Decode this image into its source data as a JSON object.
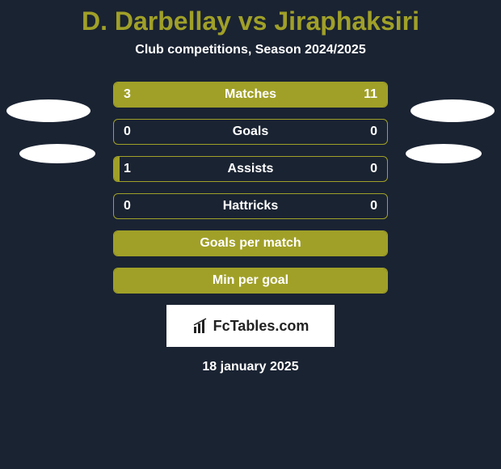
{
  "title": "D. Darbellay vs Jiraphaksiri",
  "subtitle": "Club competitions, Season 2024/2025",
  "date": "18 january 2025",
  "watermark": "FcTables.com",
  "background_color": "#1a2332",
  "accent_color": "#a0a028",
  "text_color": "#ffffff",
  "ellipse_color": "#ffffff",
  "rows": [
    {
      "label": "Matches",
      "left": "3",
      "right": "11",
      "left_width_pct": 10,
      "right_width_pct": 90,
      "show_values": true
    },
    {
      "label": "Goals",
      "left": "0",
      "right": "0",
      "left_width_pct": 0,
      "right_width_pct": 0,
      "show_values": true
    },
    {
      "label": "Assists",
      "left": "1",
      "right": "0",
      "left_width_pct": 2,
      "right_width_pct": 0,
      "show_values": true
    },
    {
      "label": "Hattricks",
      "left": "0",
      "right": "0",
      "left_width_pct": 0,
      "right_width_pct": 0,
      "show_values": true
    },
    {
      "label": "Goals per match",
      "left": "",
      "right": "",
      "left_width_pct": 100,
      "right_width_pct": 0,
      "show_values": false
    },
    {
      "label": "Min per goal",
      "left": "",
      "right": "",
      "left_width_pct": 100,
      "right_width_pct": 0,
      "show_values": false
    }
  ]
}
